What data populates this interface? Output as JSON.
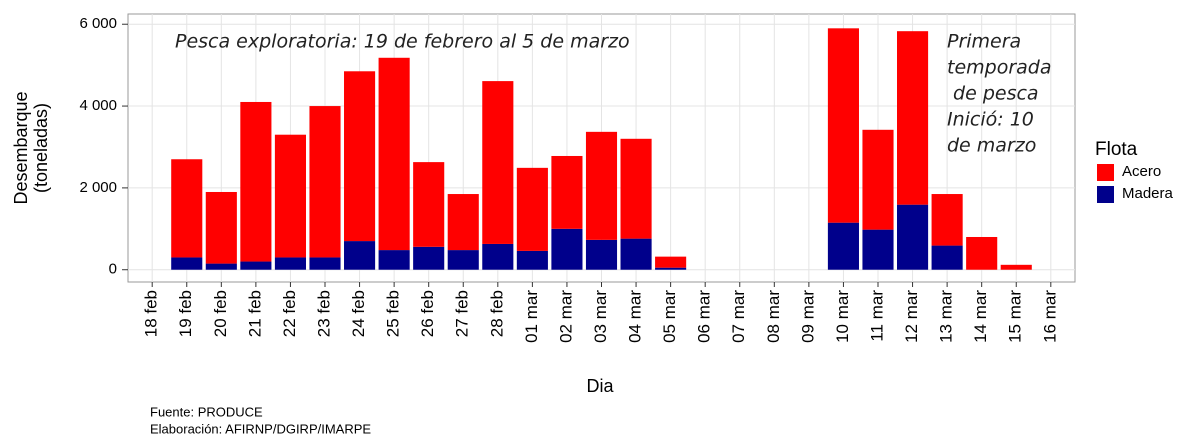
{
  "chart_data": {
    "type": "stacked_bar",
    "annotations": [
      "Pesca exploratoria: 19 de febrero al 5 de marzo",
      [
        "Primera",
        "temporada",
        " de pesca",
        "Inició: 10",
        "de marzo"
      ]
    ],
    "x_label": "Dia",
    "y_label": [
      "Desembarque",
      "(toneladas)"
    ],
    "legend_title": "Flota",
    "legend_position": "right",
    "categories": [
      "18 feb",
      "19 feb",
      "20 feb",
      "21 feb",
      "22 feb",
      "23 feb",
      "24 feb",
      "25 feb",
      "26 feb",
      "27 feb",
      "28 feb",
      "01 mar",
      "02 mar",
      "03 mar",
      "04 mar",
      "05 mar",
      "06 mar",
      "07 mar",
      "08 mar",
      "09 mar",
      "10 mar",
      "11 mar",
      "12 mar",
      "13 mar",
      "14 mar",
      "15 mar",
      "16 mar"
    ],
    "series": [
      {
        "name": "Acero",
        "color": "#ff0000",
        "values": [
          null,
          2400,
          1750,
          3900,
          3000,
          3700,
          4150,
          4700,
          2070,
          1370,
          3980,
          2030,
          1780,
          2640,
          2440,
          270,
          null,
          null,
          null,
          null,
          4750,
          2440,
          4240,
          1260,
          800,
          120,
          null
        ]
      },
      {
        "name": "Madera",
        "color": "#00008b",
        "values": [
          null,
          300,
          150,
          200,
          300,
          300,
          700,
          480,
          560,
          480,
          630,
          460,
          1000,
          730,
          760,
          50,
          null,
          null,
          null,
          null,
          1150,
          980,
          1590,
          590,
          0,
          0,
          null
        ]
      }
    ],
    "ylim": [
      -300,
      6250
    ],
    "yticks": [
      0,
      {
        "value": 2000,
        "label": "2 000"
      },
      {
        "value": 4000,
        "label": "4 000"
      },
      {
        "value": 6000,
        "label": "6 000"
      }
    ],
    "grid": true,
    "source": [
      "Fuente: PRODUCE",
      "Elaboración: AFIRNP/DGIRP/IMARPE"
    ]
  }
}
